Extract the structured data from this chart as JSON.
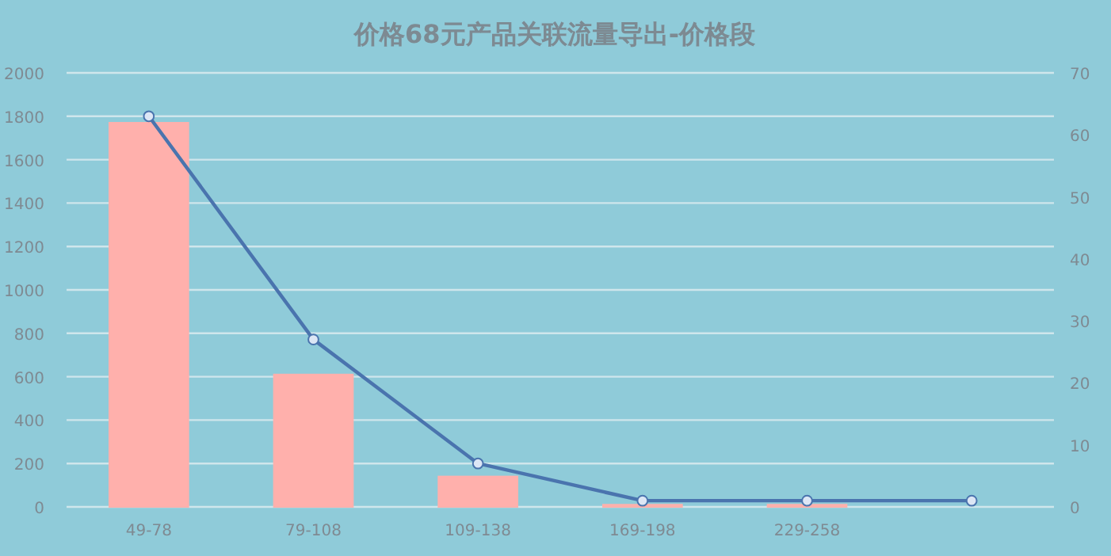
{
  "chart_data": {
    "type": "bar",
    "title": "价格68元产品关联流量导出-价格段",
    "categories": [
      "49-78",
      "79-108",
      "109-138",
      "169-198",
      "229-258",
      null
    ],
    "series": [
      {
        "color": "#ffb0ac",
        "values": [
          1770,
          610,
          140,
          10,
          10,
          null
        ]
      },
      {
        "type": "line",
        "axis": "y2",
        "color": "#4a74ae",
        "marker": "circle",
        "values": [
          63,
          27,
          7,
          1,
          1,
          1
        ]
      }
    ],
    "ylim": [
      0,
      2000
    ],
    "yticks": [
      0,
      200,
      400,
      600,
      800,
      1000,
      1200,
      1400,
      1600,
      1800,
      2000
    ],
    "y2lim": [
      0,
      70
    ],
    "y2ticks": [
      0,
      10,
      20,
      30,
      40,
      50,
      60,
      70
    ],
    "grid": "y"
  }
}
